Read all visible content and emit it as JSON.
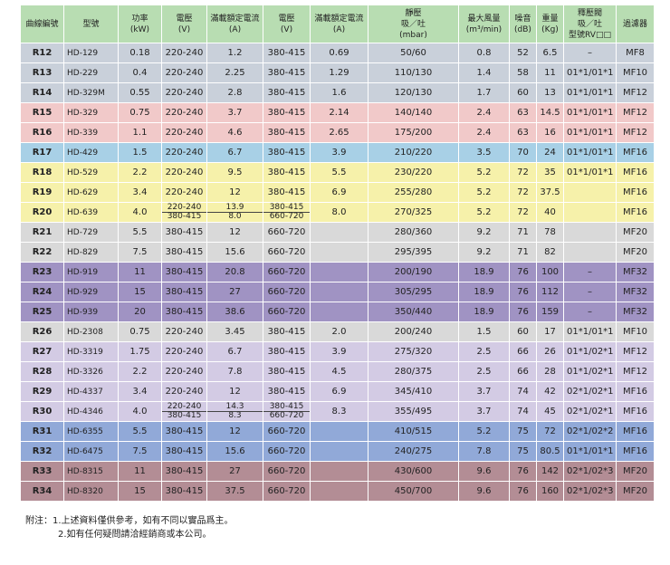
{
  "table": {
    "header": [
      [
        "曲線編號"
      ],
      [
        "型號"
      ],
      [
        "功率",
        "(kW)"
      ],
      [
        "電壓",
        "(V)"
      ],
      [
        "滿載額定電流",
        "(A)"
      ],
      [
        "電壓",
        "(V)"
      ],
      [
        "滿載額定電流",
        "(A)"
      ],
      [
        "靜壓",
        "吸／吐",
        "(mbar)"
      ],
      [
        "最大風量",
        "(m³/min)"
      ],
      [
        "噪音",
        "(dB)"
      ],
      [
        "重量",
        "(Kg)"
      ],
      [
        "釋壓閥",
        "吸／吐",
        "型號RV□□"
      ],
      [
        "過濾器"
      ]
    ],
    "rows": [
      {
        "color": "#c9d0da",
        "cells": [
          "R12",
          "HD-129",
          "0.18",
          "220-240",
          "1.2",
          "380-415",
          "0.69",
          "50/60",
          "0.8",
          "52",
          "6.5",
          "–",
          "MF8"
        ]
      },
      {
        "color": "#c9d0da",
        "cells": [
          "R13",
          "HD-229",
          "0.4",
          "220-240",
          "2.25",
          "380-415",
          "1.29",
          "110/130",
          "1.4",
          "58",
          "11",
          "01*1/01*1",
          "MF10"
        ]
      },
      {
        "color": "#c9d0da",
        "cells": [
          "R14",
          "HD-329M",
          "0.55",
          "220-240",
          "2.8",
          "380-415",
          "1.6",
          "120/130",
          "1.7",
          "60",
          "13",
          "01*1/01*1",
          "MF12"
        ]
      },
      {
        "color": "#f1c9c9",
        "cells": [
          "R15",
          "HD-329",
          "0.75",
          "220-240",
          "3.7",
          "380-415",
          "2.14",
          "140/140",
          "2.4",
          "63",
          "14.5",
          "01*1/01*1",
          "MF12"
        ]
      },
      {
        "color": "#f1c9c9",
        "cells": [
          "R16",
          "HD-339",
          "1.1",
          "220-240",
          "4.6",
          "380-415",
          "2.65",
          "175/200",
          "2.4",
          "63",
          "16",
          "01*1/01*1",
          "MF12"
        ]
      },
      {
        "color": "#a8d0e6",
        "cells": [
          "R17",
          "HD-429",
          "1.5",
          "220-240",
          "6.7",
          "380-415",
          "3.9",
          "210/220",
          "3.5",
          "70",
          "24",
          "01*1/01*1",
          "MF16"
        ]
      },
      {
        "color": "#f6f1aa",
        "cells": [
          "R18",
          "HD-529",
          "2.2",
          "220-240",
          "9.5",
          "380-415",
          "5.5",
          "230/220",
          "5.2",
          "72",
          "35",
          "01*1/01*1",
          "MF16"
        ]
      },
      {
        "color": "#f6f1aa",
        "cells": [
          "R19",
          "HD-629",
          "3.4",
          "220-240",
          "12",
          "380-415",
          "6.9",
          "255/280",
          "5.2",
          "72",
          "37.5",
          null,
          "MF16"
        ]
      },
      {
        "color": "#f6f1aa",
        "cells": [
          "R20",
          "HD-639",
          "4.0",
          [
            "220-240",
            "380-415"
          ],
          [
            "13.9",
            "8.0"
          ],
          [
            "380-415",
            "660-720"
          ],
          "8.0",
          "270/325",
          "5.2",
          "72",
          "40",
          null,
          "MF16"
        ]
      },
      {
        "color": "#d9d9d9",
        "cells": [
          "R21",
          "HD-729",
          "5.5",
          "380-415",
          "12",
          "660-720",
          null,
          "280/360",
          "9.2",
          "71",
          "78",
          null,
          "MF20"
        ]
      },
      {
        "color": "#d9d9d9",
        "cells": [
          "R22",
          "HD-829",
          "7.5",
          "380-415",
          "15.6",
          "660-720",
          null,
          "295/395",
          "9.2",
          "71",
          "82",
          null,
          "MF20"
        ]
      },
      {
        "color": "#a093c3",
        "cells": [
          "R23",
          "HD-919",
          "11",
          "380-415",
          "20.8",
          "660-720",
          null,
          "200/190",
          "18.9",
          "76",
          "100",
          "–",
          "MF32"
        ]
      },
      {
        "color": "#a093c3",
        "cells": [
          "R24",
          "HD-929",
          "15",
          "380-415",
          "27",
          "660-720",
          null,
          "305/295",
          "18.9",
          "76",
          "112",
          "–",
          "MF32"
        ]
      },
      {
        "color": "#a093c3",
        "cells": [
          "R25",
          "HD-939",
          "20",
          "380-415",
          "38.6",
          "660-720",
          null,
          "350/440",
          "18.9",
          "76",
          "159",
          "–",
          "MF32"
        ]
      },
      {
        "color": "#d9d9d9",
        "cells": [
          "R26",
          "HD-2308",
          "0.75",
          "220-240",
          "3.45",
          "380-415",
          "2.0",
          "200/240",
          "1.5",
          "60",
          "17",
          "01*1/01*1",
          "MF10"
        ]
      },
      {
        "color": "#d3cbe4",
        "cells": [
          "R27",
          "HD-3319",
          "1.75",
          "220-240",
          "6.7",
          "380-415",
          "3.9",
          "275/320",
          "2.5",
          "66",
          "26",
          "01*1/02*1",
          "MF12"
        ]
      },
      {
        "color": "#d3cbe4",
        "cells": [
          "R28",
          "HD-3326",
          "2.2",
          "220-240",
          "7.8",
          "380-415",
          "4.5",
          "280/375",
          "2.5",
          "66",
          "28",
          "01*1/02*1",
          "MF12"
        ]
      },
      {
        "color": "#d3cbe4",
        "cells": [
          "R29",
          "HD-4337",
          "3.4",
          "220-240",
          "12",
          "380-415",
          "6.9",
          "345/410",
          "3.7",
          "74",
          "42",
          "02*1/02*1",
          "MF16"
        ]
      },
      {
        "color": "#d3cbe4",
        "cells": [
          "R30",
          "HD-4346",
          "4.0",
          [
            "220-240",
            "380-415"
          ],
          [
            "14.3",
            "8.3"
          ],
          [
            "380-415",
            "660-720"
          ],
          "8.3",
          "355/495",
          "3.7",
          "74",
          "45",
          "02*1/02*1",
          "MF16"
        ]
      },
      {
        "color": "#91a9d8",
        "cells": [
          "R31",
          "HD-6355",
          "5.5",
          "380-415",
          "12",
          "660-720",
          null,
          "410/515",
          "5.2",
          "75",
          "72",
          "02*1/02*2",
          "MF16"
        ]
      },
      {
        "color": "#91a9d8",
        "cells": [
          "R32",
          "HD-6475",
          "7.5",
          "380-415",
          "15.6",
          "660-720",
          null,
          "240/275",
          "7.8",
          "75",
          "80.5",
          "01*1/01*1",
          "MF16"
        ]
      },
      {
        "color": "#b38d95",
        "cells": [
          "R33",
          "HD-8315",
          "11",
          "380-415",
          "27",
          "660-720",
          null,
          "430/600",
          "9.6",
          "76",
          "142",
          "02*1/02*3",
          "MF20"
        ]
      },
      {
        "color": "#b38d95",
        "cells": [
          "R34",
          "HD-8320",
          "15",
          "380-415",
          "37.5",
          "660-720",
          null,
          "450/700",
          "9.6",
          "76",
          "160",
          "02*1/02*3",
          "MF20"
        ]
      }
    ]
  },
  "notes": {
    "label": "附注：",
    "items": [
      "1.上述資料僅供參考，如有不同以實品爲主。",
      "2.如有任何疑問請洽經銷商或本公司。"
    ]
  }
}
